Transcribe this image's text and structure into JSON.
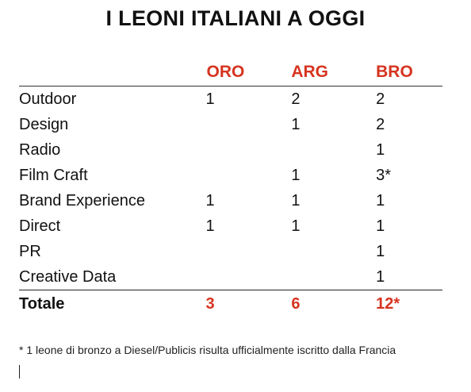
{
  "title": "I LEONI ITALIANI A OGGI",
  "table": {
    "headers": [
      "",
      "ORO",
      "ARG",
      "BRO"
    ],
    "rows": [
      {
        "category": "Outdoor",
        "oro": "1",
        "arg": "2",
        "bro": "2"
      },
      {
        "category": "Design",
        "oro": "",
        "arg": "1",
        "bro": "2"
      },
      {
        "category": "Radio",
        "oro": "",
        "arg": "",
        "bro": "1"
      },
      {
        "category": "Film Craft",
        "oro": "",
        "arg": "1",
        "bro": "3*"
      },
      {
        "category": "Brand Experience",
        "oro": "1",
        "arg": "1",
        "bro": "1"
      },
      {
        "category": "Direct",
        "oro": "1",
        "arg": "1",
        "bro": "1"
      },
      {
        "category": "PR",
        "oro": "",
        "arg": "",
        "bro": "1"
      },
      {
        "category": "Creative Data",
        "oro": "",
        "arg": "",
        "bro": "1"
      }
    ],
    "total": {
      "category": "Totale",
      "oro": "3",
      "arg": "6",
      "bro": "12*"
    }
  },
  "footnote": "* 1 leone di bronzo a Diesel/Publicis risulta ufficialmente iscritto dalla Francia",
  "colors": {
    "accent": "#d6341f",
    "text": "#111111"
  }
}
